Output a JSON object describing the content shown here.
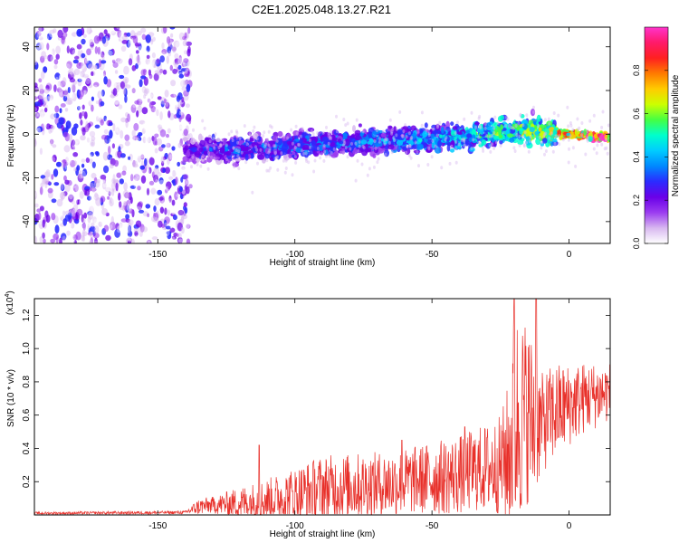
{
  "title": "C2E1.2025.048.13.27.R21",
  "colors": {
    "snr_line": "#e8302a",
    "colormap": [
      "#ffffff",
      "#d8b8f0",
      "#9b3cf0",
      "#6a00e8",
      "#2b2bff",
      "#0088ff",
      "#00ccff",
      "#00ffcc",
      "#44ff44",
      "#ccff00",
      "#ffcc00",
      "#ff7a00",
      "#ff2020",
      "#ff1a6a",
      "#ff33cc"
    ]
  },
  "chart_data": [
    {
      "type": "heatmap",
      "xlabel": "Height of straight line (km)",
      "ylabel": "Frequency (Hz)",
      "xlim": [
        -195,
        15
      ],
      "ylim": [
        -50,
        49
      ],
      "x_ticks": [
        "-150",
        "-100",
        "-50",
        "0"
      ],
      "x_tick_values": [
        -150,
        -100,
        -50,
        0
      ],
      "y_ticks": [
        "-40",
        "-20",
        "0",
        "20",
        "40"
      ],
      "y_tick_values": [
        -40,
        -20,
        0,
        20,
        40
      ],
      "colorbar": {
        "label": "Normalized spectral amplitude",
        "range": [
          0,
          1
        ],
        "ticks": [
          "0.0",
          "0.2",
          "0.4",
          "0.6",
          "0.8"
        ],
        "tick_values": [
          0.0,
          0.2,
          0.4,
          0.6,
          0.8
        ]
      },
      "features": {
        "noise_region_x": [
          -195,
          -138
        ],
        "signal_ridge": {
          "x": [
            -140,
            -130,
            -120,
            -110,
            -100,
            -90,
            -80,
            -70,
            -60,
            -50,
            -40,
            -30,
            -25,
            -20,
            -10,
            0,
            5,
            10,
            15
          ],
          "freq": [
            -7,
            -7,
            -7,
            -6,
            -5,
            -4.5,
            -4,
            -3,
            -2.5,
            -2,
            -1,
            0,
            1,
            2,
            1,
            0,
            -0.5,
            -1.5,
            -1.5
          ],
          "amplitude": [
            0.22,
            0.28,
            0.3,
            0.3,
            0.32,
            0.32,
            0.33,
            0.35,
            0.36,
            0.38,
            0.42,
            0.45,
            0.5,
            0.5,
            0.58,
            0.7,
            0.8,
            0.95,
            0.9
          ]
        }
      }
    },
    {
      "type": "line",
      "xlabel": "Height of straight line (km)",
      "ylabel": "SNR (10 * v/v)",
      "y_scale_label": "(x10",
      "y_scale_exponent": "4",
      "xlim": [
        -195,
        15
      ],
      "ylim": [
        0,
        1.3
      ],
      "x_ticks": [
        "-150",
        "-100",
        "-50",
        "0"
      ],
      "x_tick_values": [
        -150,
        -100,
        -50,
        0
      ],
      "y_ticks": [
        "0.2",
        "0.4",
        "0.6",
        "0.8",
        "1.0",
        "1.2"
      ],
      "y_tick_values": [
        0.2,
        0.4,
        0.6,
        0.8,
        1.0,
        1.2
      ],
      "series": [
        {
          "envelope_x": [
            -195,
            -140,
            -135,
            -130,
            -120,
            -110,
            -100,
            -90,
            -80,
            -70,
            -60,
            -50,
            -40,
            -35,
            -30,
            -25,
            -22,
            -20,
            -17,
            -15,
            -13,
            -10,
            -5,
            0,
            5,
            10,
            15
          ],
          "envelope_mean": [
            0.01,
            0.015,
            0.05,
            0.06,
            0.07,
            0.09,
            0.12,
            0.16,
            0.17,
            0.18,
            0.2,
            0.22,
            0.24,
            0.27,
            0.28,
            0.3,
            0.36,
            0.55,
            0.6,
            0.62,
            0.55,
            0.55,
            0.62,
            0.66,
            0.7,
            0.72,
            0.74
          ],
          "envelope_amp": [
            0.008,
            0.01,
            0.05,
            0.05,
            0.1,
            0.13,
            0.17,
            0.2,
            0.2,
            0.2,
            0.2,
            0.22,
            0.24,
            0.25,
            0.27,
            0.3,
            0.45,
            0.7,
            0.6,
            0.55,
            0.5,
            0.3,
            0.3,
            0.25,
            0.22,
            0.2,
            0.18
          ],
          "spikes": [
            {
              "x": -20,
              "y": 1.3
            },
            {
              "x": -12,
              "y": 1.3
            },
            {
              "x": -113,
              "y": 0.42
            },
            {
              "x": -61,
              "y": 0.45
            },
            {
              "x": -38,
              "y": 0.53
            }
          ]
        }
      ]
    }
  ]
}
